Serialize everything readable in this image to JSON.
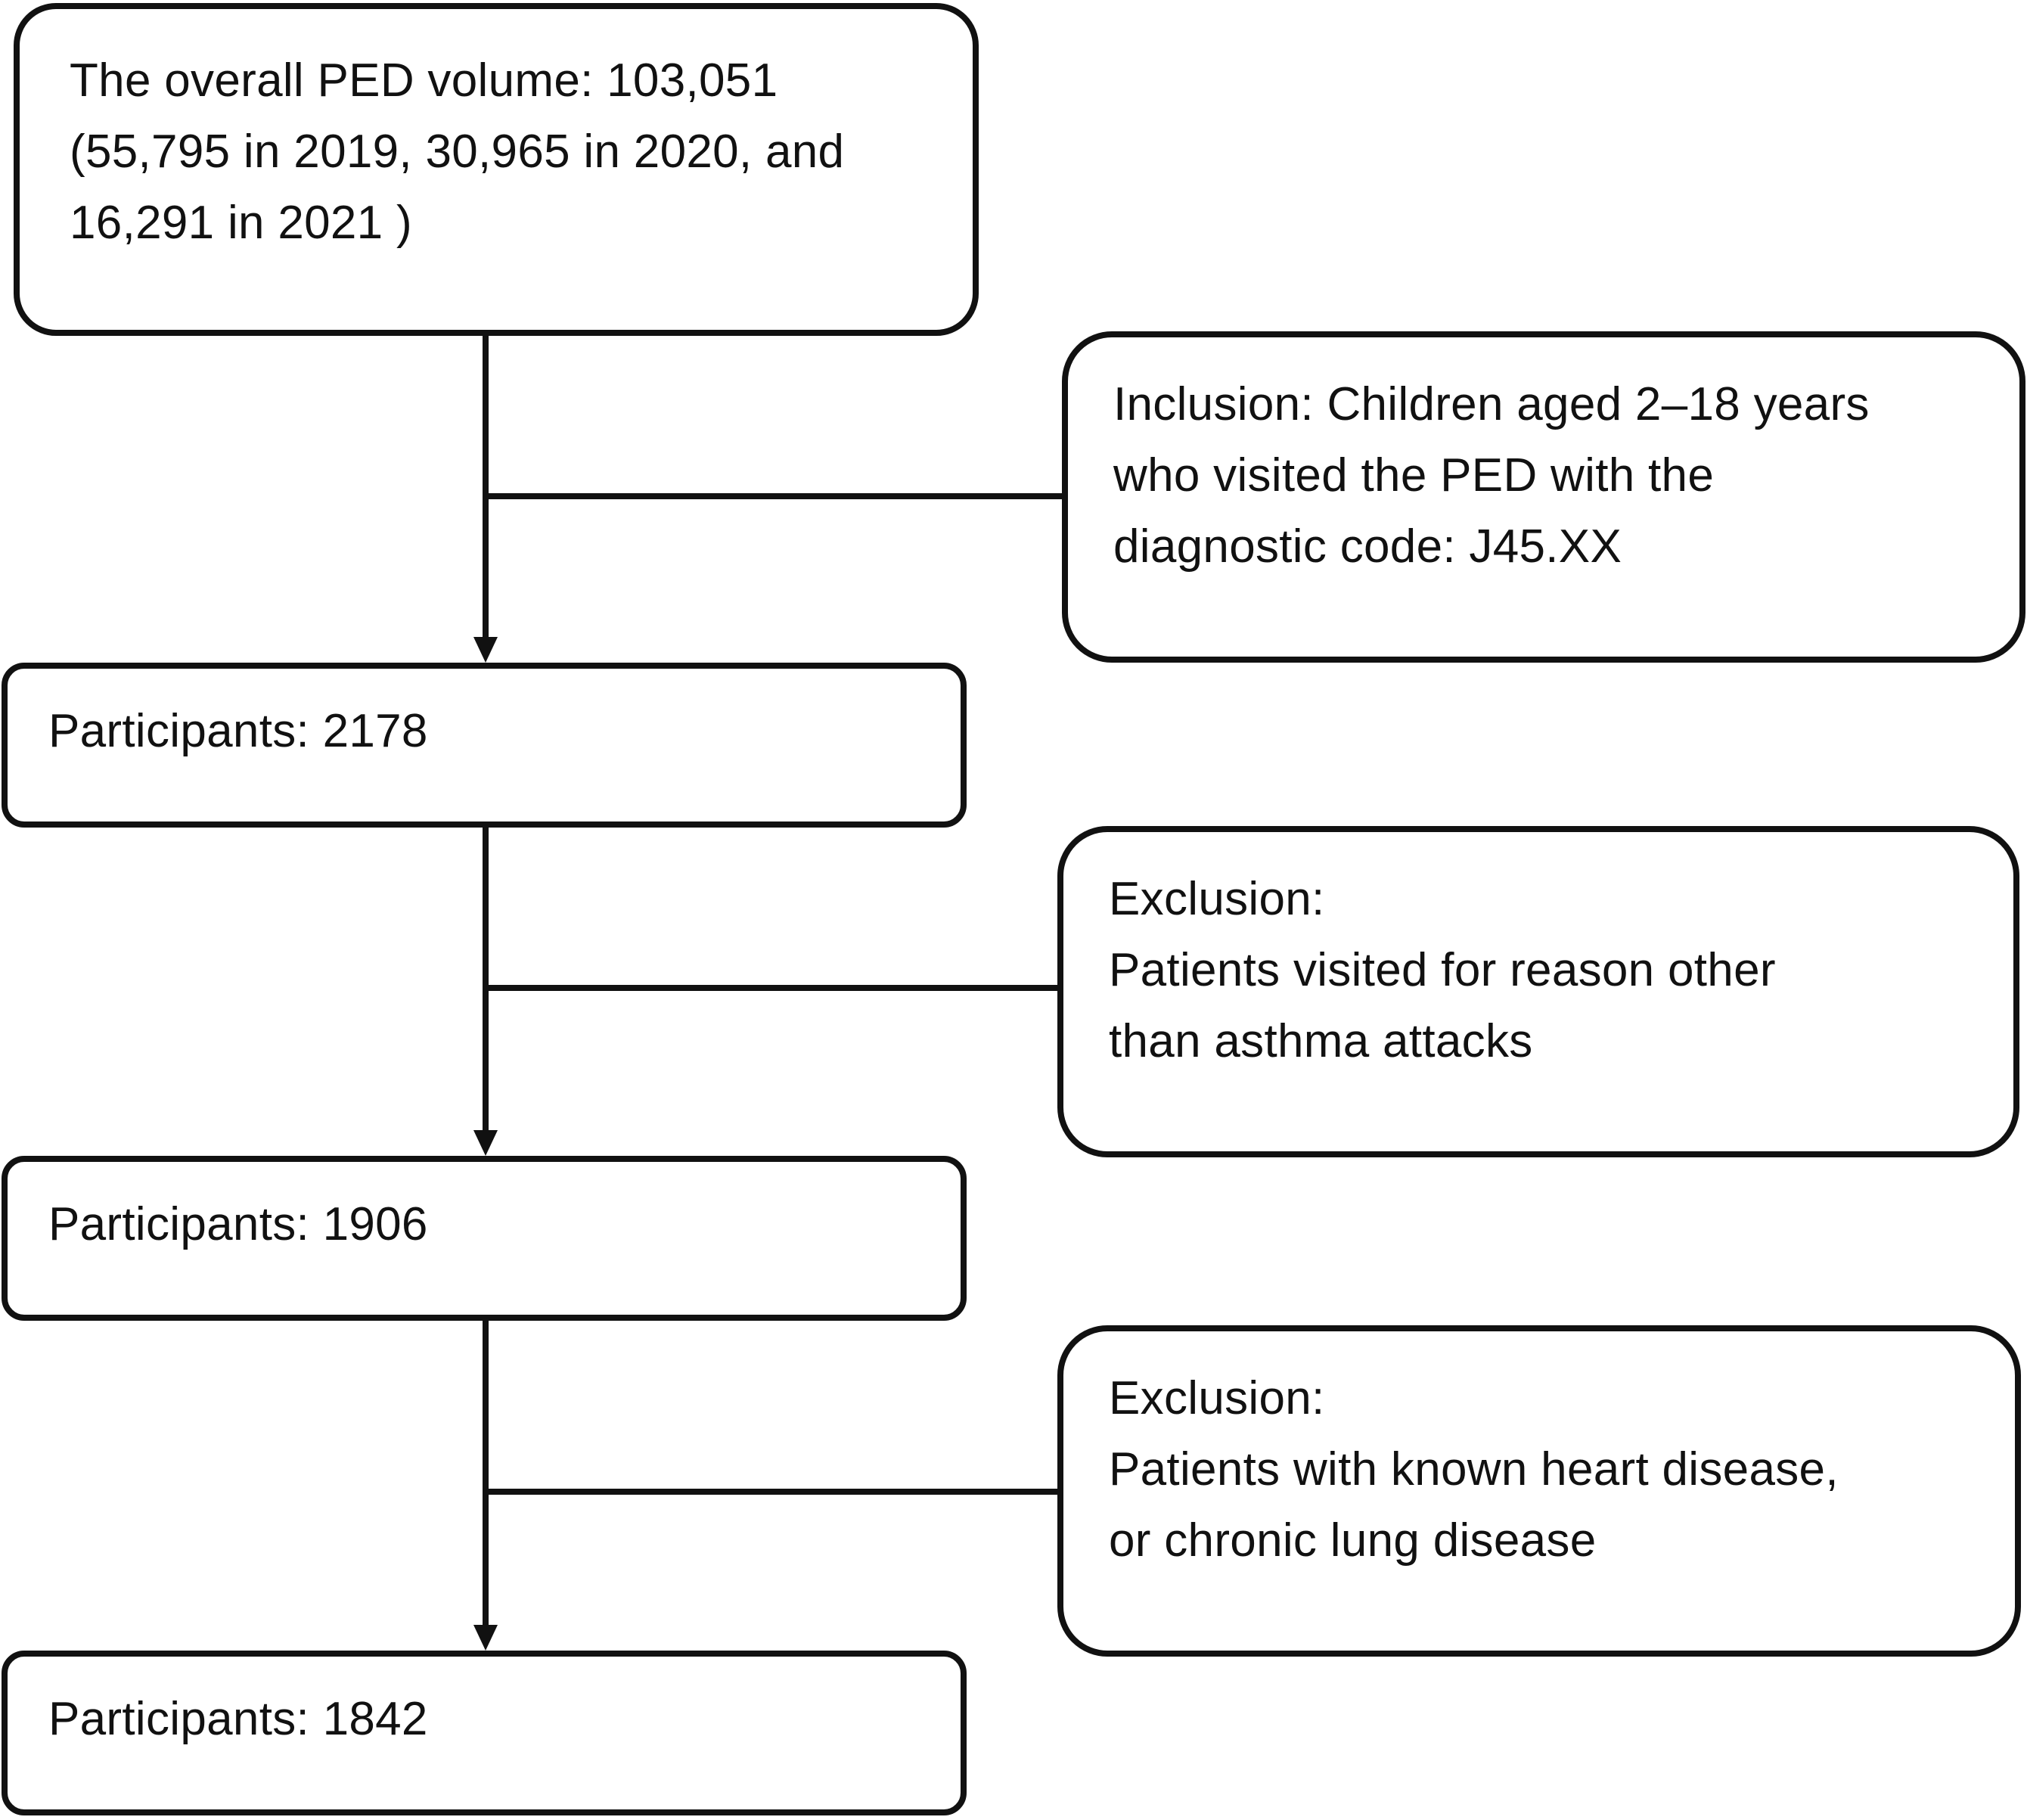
{
  "flowchart": {
    "overall_volume": {
      "lines": [
        "The overall PED volume: 103,051",
        "(55,795 in 2019, 30,965 in 2020, and",
        "16,291 in 2021 )"
      ]
    },
    "inclusion": {
      "lines": [
        "Inclusion: Children aged 2–18 years",
        "who visited the PED with the",
        "diagnostic code: J45.XX"
      ]
    },
    "participants_1": {
      "text": "Participants: 2178"
    },
    "exclusion_1": {
      "lines": [
        "Exclusion:",
        "Patients visited for reason other",
        "than asthma attacks"
      ]
    },
    "participants_2": {
      "text": "Participants: 1906"
    },
    "exclusion_2": {
      "lines": [
        "Exclusion:",
        "Patients with known heart disease,",
        "or chronic lung disease"
      ]
    },
    "participants_3": {
      "text": "Participants: 1842"
    }
  },
  "colors": {
    "stroke": "#111111",
    "background": "#ffffff",
    "text": "#111111"
  }
}
